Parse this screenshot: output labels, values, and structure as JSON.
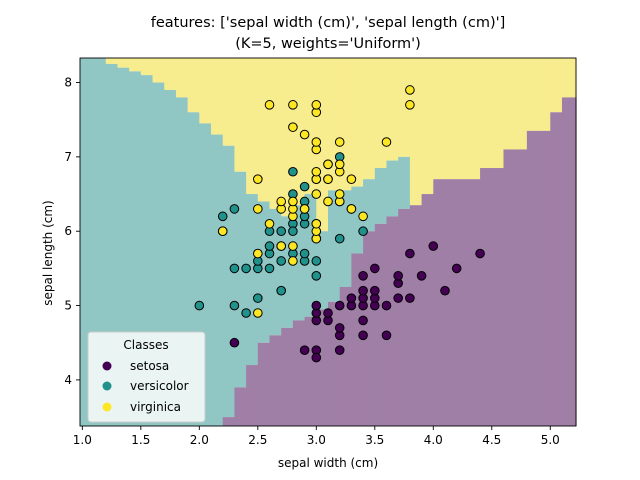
{
  "chart_data": {
    "type": "scatter",
    "title": "features: ['sepal width (cm)', 'sepal length (cm)']",
    "subtitle": "(K=5, weights='Uniform')",
    "xlabel": "sepal width (cm)",
    "ylabel": "sepal length (cm)",
    "xlim": [
      0.98,
      5.22
    ],
    "ylim": [
      3.38,
      8.33
    ],
    "xticks": [
      "1.0",
      "1.5",
      "2.0",
      "2.5",
      "3.0",
      "3.5",
      "4.0",
      "4.5",
      "5.0"
    ],
    "yticks": [
      "4",
      "5",
      "6",
      "7",
      "8"
    ],
    "grid": false,
    "legend": {
      "title": "Classes",
      "placement": "lower-left"
    },
    "region_colors": {
      "setosa": "#a07fa7",
      "versicolor": "#90c6c4",
      "virginica": "#f8ed8e"
    },
    "decision_regions": [
      {
        "x0": 0.98,
        "x1": 1.05,
        "setosa_below": 3.38,
        "virginica_above": 8.33
      },
      {
        "x0": 1.05,
        "x1": 1.2,
        "setosa_below": 3.38,
        "virginica_above": 8.33
      },
      {
        "x0": 1.2,
        "x1": 1.3,
        "setosa_below": 3.38,
        "virginica_above": 8.25
      },
      {
        "x0": 1.3,
        "x1": 1.4,
        "setosa_below": 3.38,
        "virginica_above": 8.2
      },
      {
        "x0": 1.4,
        "x1": 1.5,
        "setosa_below": 3.38,
        "virginica_above": 8.15
      },
      {
        "x0": 1.5,
        "x1": 1.6,
        "setosa_below": 3.38,
        "virginica_above": 8.1
      },
      {
        "x0": 1.6,
        "x1": 1.7,
        "setosa_below": 3.38,
        "virginica_above": 8.0
      },
      {
        "x0": 1.7,
        "x1": 1.8,
        "setosa_below": 3.38,
        "virginica_above": 7.9
      },
      {
        "x0": 1.8,
        "x1": 1.9,
        "setosa_below": 3.38,
        "virginica_above": 7.8
      },
      {
        "x0": 1.9,
        "x1": 2.0,
        "setosa_below": 3.38,
        "virginica_above": 7.6
      },
      {
        "x0": 2.0,
        "x1": 2.1,
        "setosa_below": 3.38,
        "virginica_above": 7.45
      },
      {
        "x0": 2.1,
        "x1": 2.2,
        "setosa_below": 3.38,
        "virginica_above": 7.3
      },
      {
        "x0": 2.2,
        "x1": 2.3,
        "setosa_below": 3.5,
        "virginica_above": 7.15
      },
      {
        "x0": 2.3,
        "x1": 2.4,
        "setosa_below": 3.9,
        "virginica_above": 6.8
      },
      {
        "x0": 2.4,
        "x1": 2.5,
        "setosa_below": 4.2,
        "virginica_above": 6.5
      },
      {
        "x0": 2.5,
        "x1": 2.6,
        "setosa_below": 4.5,
        "virginica_above": 6.4
      },
      {
        "x0": 2.6,
        "x1": 2.7,
        "setosa_below": 4.6,
        "virginica_above": 6.3
      },
      {
        "x0": 2.7,
        "x1": 2.8,
        "setosa_below": 4.7,
        "virginica_above": 6.2
      },
      {
        "x0": 2.8,
        "x1": 2.9,
        "setosa_below": 4.8,
        "virginica_above": 6.35
      },
      {
        "x0": 2.9,
        "x1": 3.0,
        "setosa_below": 4.85,
        "virginica_above": 6.5
      },
      {
        "x0": 3.0,
        "x1": 3.1,
        "setosa_below": 4.95,
        "virginica_above": 6.0
      },
      {
        "x0": 3.1,
        "x1": 3.2,
        "setosa_below": 5.05,
        "virginica_above": 6.55
      },
      {
        "x0": 3.2,
        "x1": 3.3,
        "setosa_below": 5.25,
        "virginica_above": 6.55
      },
      {
        "x0": 3.3,
        "x1": 3.4,
        "setosa_below": 5.7,
        "virginica_above": 6.6
      },
      {
        "x0": 3.4,
        "x1": 3.5,
        "setosa_below": 6.0,
        "virginica_above": 6.7
      },
      {
        "x0": 3.5,
        "x1": 3.6,
        "setosa_below": 6.1,
        "virginica_above": 6.85
      },
      {
        "x0": 3.6,
        "x1": 3.7,
        "setosa_below": 6.2,
        "virginica_above": 6.95
      },
      {
        "x0": 3.7,
        "x1": 3.8,
        "setosa_below": 6.3,
        "virginica_above": 7.0
      },
      {
        "x0": 3.8,
        "x1": 3.9,
        "setosa_below": 6.35,
        "virginica_above": 6.35
      },
      {
        "x0": 3.9,
        "x1": 4.0,
        "setosa_below": 6.5,
        "virginica_above": 6.5
      },
      {
        "x0": 4.0,
        "x1": 4.4,
        "setosa_below": 6.7,
        "virginica_above": 6.7
      },
      {
        "x0": 4.4,
        "x1": 4.6,
        "setosa_below": 6.85,
        "virginica_above": 6.85
      },
      {
        "x0": 4.6,
        "x1": 4.8,
        "setosa_below": 7.1,
        "virginica_above": 7.1
      },
      {
        "x0": 4.8,
        "x1": 5.0,
        "setosa_below": 7.35,
        "virginica_above": 7.35
      },
      {
        "x0": 5.0,
        "x1": 5.1,
        "setosa_below": 7.6,
        "virginica_above": 7.6
      },
      {
        "x0": 5.1,
        "x1": 5.22,
        "setosa_below": 7.8,
        "virginica_above": 7.8
      }
    ],
    "series": [
      {
        "name": "setosa",
        "color": "#440154",
        "points": [
          [
            2.3,
            4.5
          ],
          [
            2.9,
            4.4
          ],
          [
            3.0,
            4.4
          ],
          [
            3.0,
            4.3
          ],
          [
            3.2,
            4.4
          ],
          [
            3.0,
            4.8
          ],
          [
            3.0,
            4.9
          ],
          [
            3.0,
            5.0
          ],
          [
            3.1,
            4.8
          ],
          [
            3.1,
            4.9
          ],
          [
            3.2,
            4.6
          ],
          [
            3.2,
            4.7
          ],
          [
            3.3,
            5.0
          ],
          [
            3.4,
            4.8
          ],
          [
            3.4,
            5.0
          ],
          [
            3.2,
            5.0
          ],
          [
            3.3,
            5.1
          ],
          [
            3.4,
            5.1
          ],
          [
            3.4,
            5.2
          ],
          [
            3.4,
            5.4
          ],
          [
            3.5,
            5.0
          ],
          [
            3.5,
            5.1
          ],
          [
            3.5,
            5.2
          ],
          [
            3.5,
            5.5
          ],
          [
            3.6,
            4.6
          ],
          [
            3.6,
            5.0
          ],
          [
            3.7,
            5.1
          ],
          [
            3.7,
            5.3
          ],
          [
            3.7,
            5.4
          ],
          [
            3.8,
            5.1
          ],
          [
            3.8,
            5.7
          ],
          [
            3.9,
            5.4
          ],
          [
            4.0,
            5.8
          ],
          [
            4.1,
            5.2
          ],
          [
            4.2,
            5.5
          ],
          [
            4.4,
            5.7
          ],
          [
            3.4,
            4.6
          ]
        ]
      },
      {
        "name": "versicolor",
        "color": "#21918c",
        "points": [
          [
            2.0,
            5.0
          ],
          [
            2.2,
            6.2
          ],
          [
            2.2,
            6.0
          ],
          [
            2.3,
            6.3
          ],
          [
            2.3,
            5.5
          ],
          [
            2.3,
            5.0
          ],
          [
            2.4,
            5.5
          ],
          [
            2.4,
            4.9
          ],
          [
            2.5,
            5.1
          ],
          [
            2.5,
            5.5
          ],
          [
            2.5,
            5.6
          ],
          [
            2.6,
            5.5
          ],
          [
            2.6,
            5.7
          ],
          [
            2.6,
            5.8
          ],
          [
            2.7,
            5.8
          ],
          [
            2.7,
            6.0
          ],
          [
            2.7,
            5.6
          ],
          [
            2.7,
            5.2
          ],
          [
            2.8,
            5.7
          ],
          [
            2.8,
            6.1
          ],
          [
            2.8,
            6.8
          ],
          [
            2.8,
            6.5
          ],
          [
            2.8,
            6.0
          ],
          [
            2.9,
            5.6
          ],
          [
            2.9,
            5.7
          ],
          [
            2.9,
            6.1
          ],
          [
            2.9,
            6.2
          ],
          [
            2.9,
            6.4
          ],
          [
            2.9,
            6.6
          ],
          [
            3.0,
            5.4
          ],
          [
            3.0,
            5.6
          ],
          [
            3.0,
            6.7
          ],
          [
            3.0,
            6.1
          ],
          [
            3.0,
            5.9
          ],
          [
            3.1,
            6.7
          ],
          [
            3.1,
            6.9
          ],
          [
            3.2,
            5.9
          ],
          [
            3.2,
            6.4
          ],
          [
            3.2,
            7.0
          ],
          [
            3.3,
            6.3
          ],
          [
            3.4,
            6.0
          ],
          [
            2.6,
            6.0
          ]
        ]
      },
      {
        "name": "virginica",
        "color": "#fde725",
        "points": [
          [
            2.2,
            6.0
          ],
          [
            2.5,
            4.9
          ],
          [
            2.5,
            5.7
          ],
          [
            2.5,
            6.3
          ],
          [
            2.5,
            6.7
          ],
          [
            2.6,
            6.1
          ],
          [
            2.6,
            7.7
          ],
          [
            2.7,
            5.8
          ],
          [
            2.7,
            6.3
          ],
          [
            2.7,
            6.4
          ],
          [
            2.8,
            5.6
          ],
          [
            2.8,
            5.8
          ],
          [
            2.8,
            6.2
          ],
          [
            2.8,
            6.3
          ],
          [
            2.8,
            6.4
          ],
          [
            2.8,
            7.4
          ],
          [
            2.8,
            7.7
          ],
          [
            2.9,
            6.3
          ],
          [
            2.9,
            7.3
          ],
          [
            3.0,
            5.9
          ],
          [
            3.0,
            6.0
          ],
          [
            3.0,
            6.1
          ],
          [
            3.0,
            6.5
          ],
          [
            3.0,
            6.7
          ],
          [
            3.0,
            6.8
          ],
          [
            3.0,
            7.1
          ],
          [
            3.0,
            7.2
          ],
          [
            3.0,
            7.6
          ],
          [
            3.0,
            7.7
          ],
          [
            3.1,
            6.4
          ],
          [
            3.1,
            6.7
          ],
          [
            3.1,
            6.9
          ],
          [
            3.2,
            6.4
          ],
          [
            3.2,
            6.5
          ],
          [
            3.2,
            6.8
          ],
          [
            3.2,
            6.9
          ],
          [
            3.2,
            7.2
          ],
          [
            3.3,
            6.3
          ],
          [
            3.3,
            6.7
          ],
          [
            3.4,
            6.2
          ],
          [
            3.6,
            7.2
          ],
          [
            3.8,
            7.7
          ],
          [
            3.8,
            7.9
          ],
          [
            2.9,
            6.3
          ]
        ]
      }
    ]
  }
}
